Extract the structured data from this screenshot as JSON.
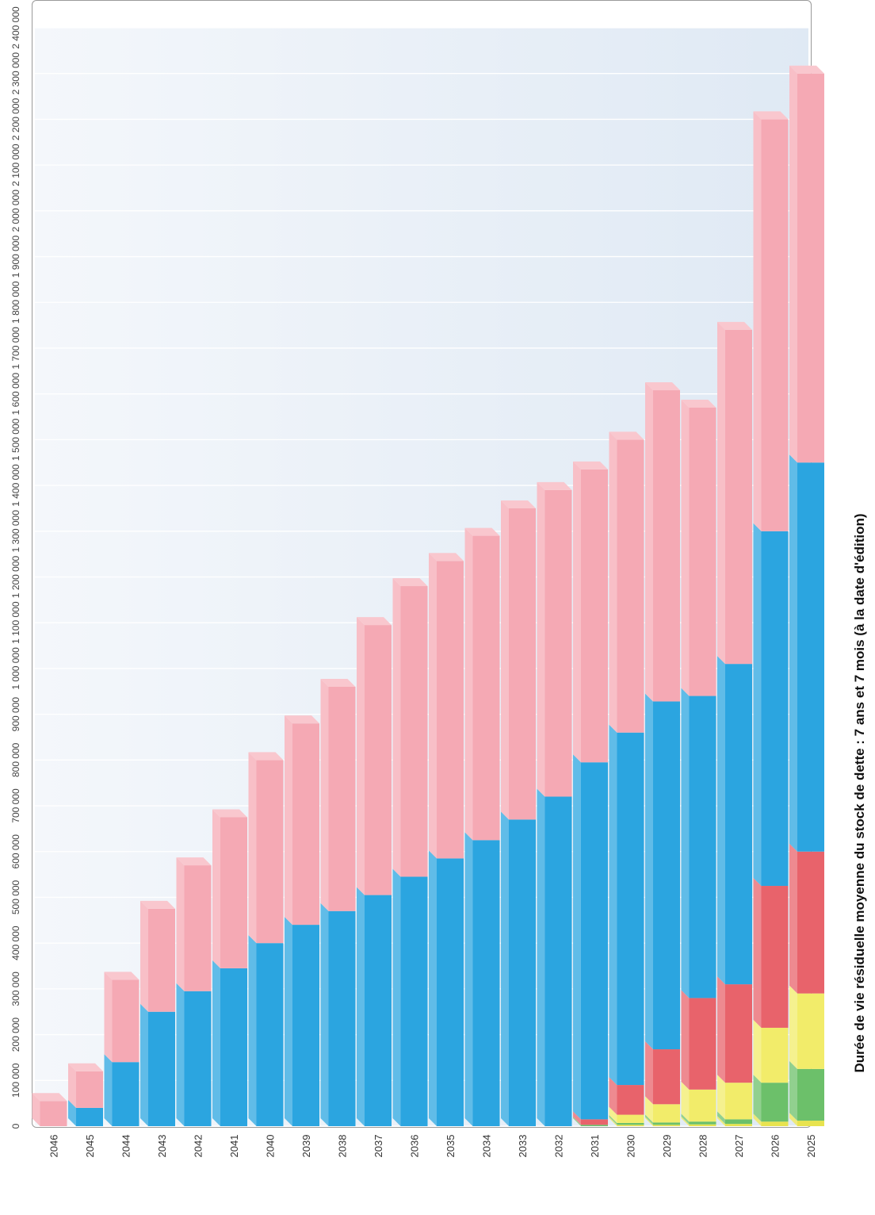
{
  "chart_data": {
    "type": "bar",
    "stacked": true,
    "orientation": "horizontal",
    "grid": true,
    "subtitle": "Durée de vie résiduelle moyenne du stock de dette :  7 ans et 7 mois (à la date d'édition)",
    "xlim": [
      0,
      2400000
    ],
    "ticks": [
      {
        "value": 0,
        "label": "0"
      },
      {
        "value": 100000,
        "label": "100 000"
      },
      {
        "value": 200000,
        "label": "200 000"
      },
      {
        "value": 300000,
        "label": "300 000"
      },
      {
        "value": 400000,
        "label": "400 000"
      },
      {
        "value": 500000,
        "label": "500 000"
      },
      {
        "value": 600000,
        "label": "600 000"
      },
      {
        "value": 700000,
        "label": "700 000"
      },
      {
        "value": 800000,
        "label": "800 000"
      },
      {
        "value": 900000,
        "label": "900 000"
      },
      {
        "value": 1000000,
        "label": "1 000 000"
      },
      {
        "value": 1100000,
        "label": "1 100 000"
      },
      {
        "value": 1200000,
        "label": "1 200 000"
      },
      {
        "value": 1300000,
        "label": "1 300 000"
      },
      {
        "value": 1400000,
        "label": "1 400 000"
      },
      {
        "value": 1500000,
        "label": "1 500 000"
      },
      {
        "value": 1600000,
        "label": "1 600 000"
      },
      {
        "value": 1700000,
        "label": "1 700 000"
      },
      {
        "value": 1800000,
        "label": "1 800 000"
      },
      {
        "value": 1900000,
        "label": "1 900 000"
      },
      {
        "value": 2000000,
        "label": "2 000 000"
      },
      {
        "value": 2100000,
        "label": "2 100 000"
      },
      {
        "value": 2200000,
        "label": "2 200 000"
      },
      {
        "value": 2300000,
        "label": "2 300 000"
      },
      {
        "value": 2400000,
        "label": "2 400 000"
      }
    ],
    "categories": [
      "2025",
      "2026",
      "2027",
      "2028",
      "2029",
      "2030",
      "2031",
      "2032",
      "2033",
      "2034",
      "2035",
      "2036",
      "2037",
      "2038",
      "2039",
      "2040",
      "2041",
      "2042",
      "2043",
      "2044",
      "2045",
      "2046"
    ],
    "series": [
      {
        "color": "#e8e34f",
        "values": [
          12000,
          10000,
          5000,
          4000,
          3000,
          3000,
          0,
          0,
          0,
          0,
          0,
          0,
          0,
          0,
          0,
          0,
          0,
          0,
          0,
          0,
          0,
          0
        ]
      },
      {
        "color": "#6cc06a",
        "values": [
          113000,
          85000,
          10000,
          6000,
          5000,
          4000,
          3000,
          0,
          0,
          0,
          0,
          0,
          0,
          0,
          0,
          0,
          0,
          0,
          0,
          0,
          0,
          0
        ]
      },
      {
        "color": "#f2ec6a",
        "values": [
          165000,
          120000,
          80000,
          70000,
          40000,
          18000,
          0,
          0,
          0,
          0,
          0,
          0,
          0,
          0,
          0,
          0,
          0,
          0,
          0,
          0,
          0,
          0
        ]
      },
      {
        "color": "#e8636b",
        "values": [
          310000,
          310000,
          215000,
          200000,
          120000,
          65000,
          12000,
          0,
          0,
          0,
          0,
          0,
          0,
          0,
          0,
          0,
          0,
          0,
          0,
          0,
          0,
          0
        ]
      },
      {
        "color": "#2ba5e0",
        "values": [
          850000,
          775000,
          700000,
          660000,
          760000,
          770000,
          780000,
          720000,
          670000,
          625000,
          585000,
          545000,
          505000,
          470000,
          440000,
          400000,
          345000,
          295000,
          250000,
          140000,
          40000,
          0
        ]
      },
      {
        "color": "#f5a9b4",
        "values": [
          850000,
          900000,
          730000,
          630000,
          680000,
          640000,
          640000,
          670000,
          680000,
          665000,
          650000,
          635000,
          590000,
          490000,
          440000,
          400000,
          330000,
          275000,
          225000,
          180000,
          80000,
          55000
        ]
      }
    ]
  }
}
